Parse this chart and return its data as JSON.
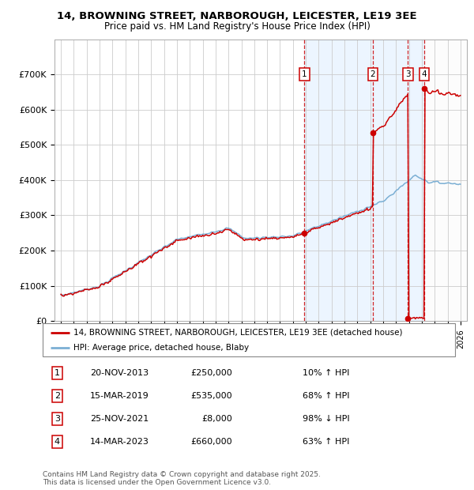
{
  "title1": "14, BROWNING STREET, NARBOROUGH, LEICESTER, LE19 3EE",
  "title2": "Price paid vs. HM Land Registry's House Price Index (HPI)",
  "background_color": "#ffffff",
  "plot_bg_color": "#ffffff",
  "grid_color": "#cccccc",
  "hpi_line_color": "#7bafd4",
  "price_line_color": "#cc0000",
  "shade_color": "#ddeeff",
  "transactions": [
    {
      "num": 1,
      "date_dec": 2013.9,
      "price": 250000,
      "label": "20-NOV-2013",
      "pct": "10%",
      "dir": "↑"
    },
    {
      "num": 2,
      "date_dec": 2019.2,
      "price": 535000,
      "label": "15-MAR-2019",
      "pct": "68%",
      "dir": "↑"
    },
    {
      "num": 3,
      "date_dec": 2021.92,
      "price": 8000,
      "label": "25-NOV-2021",
      "pct": "98%",
      "dir": "↓"
    },
    {
      "num": 4,
      "date_dec": 2023.2,
      "price": 660000,
      "label": "14-MAR-2023",
      "pct": "63%",
      "dir": "↑"
    }
  ],
  "ylim": [
    0,
    800000
  ],
  "xlim": [
    1994.5,
    2026.5
  ],
  "yticks": [
    0,
    100000,
    200000,
    300000,
    400000,
    500000,
    600000,
    700000
  ],
  "ytick_labels": [
    "£0",
    "£100K",
    "£200K",
    "£300K",
    "£400K",
    "£500K",
    "£600K",
    "£700K"
  ],
  "xticks": [
    1995,
    1996,
    1997,
    1998,
    1999,
    2000,
    2001,
    2002,
    2003,
    2004,
    2005,
    2006,
    2007,
    2008,
    2009,
    2010,
    2011,
    2012,
    2013,
    2014,
    2015,
    2016,
    2017,
    2018,
    2019,
    2020,
    2021,
    2022,
    2023,
    2024,
    2025,
    2026
  ],
  "legend_price_label": "14, BROWNING STREET, NARBOROUGH, LEICESTER, LE19 3EE (detached house)",
  "legend_hpi_label": "HPI: Average price, detached house, Blaby",
  "footer1": "Contains HM Land Registry data © Crown copyright and database right 2025.",
  "footer2": "This data is licensed under the Open Government Licence v3.0."
}
